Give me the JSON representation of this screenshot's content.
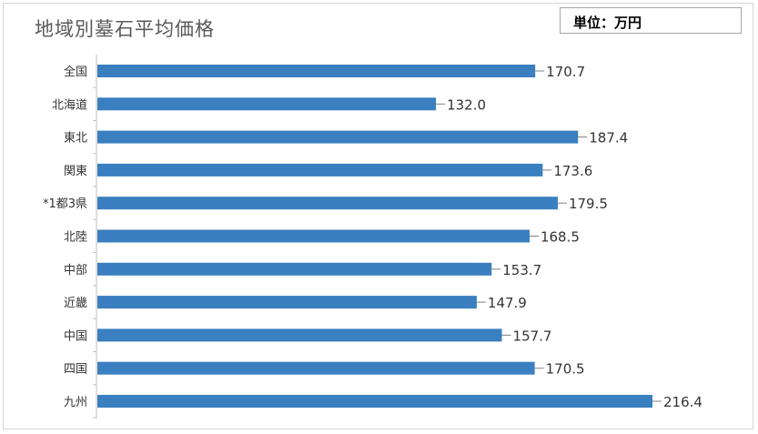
{
  "header": {
    "title": "地域別墓石平均価格",
    "unit": "単位：万円"
  },
  "colors": {
    "bar": "#3a7fbf",
    "axis": "#bfbfbf",
    "label": "#333333"
  },
  "chart_data": {
    "type": "bar",
    "orientation": "horizontal",
    "title": "地域別墓石平均価格",
    "xlabel": "",
    "ylabel": "",
    "unit": "単位：万円",
    "categories": [
      "全国",
      "北海道",
      "東北",
      "関東",
      "*1都3県",
      "北陸",
      "中部",
      "近畿",
      "中国",
      "四国",
      "九州"
    ],
    "values": [
      170.7,
      132.0,
      187.4,
      173.6,
      179.5,
      168.5,
      153.7,
      147.9,
      157.7,
      170.5,
      216.4
    ],
    "value_labels": [
      "170.7",
      "132.0",
      "187.4",
      "173.6",
      "179.5",
      "168.5",
      "153.7",
      "147.9",
      "157.7",
      "170.5",
      "216.4"
    ],
    "xlim": [
      0,
      216.4
    ],
    "grid": false,
    "legend": "none"
  }
}
